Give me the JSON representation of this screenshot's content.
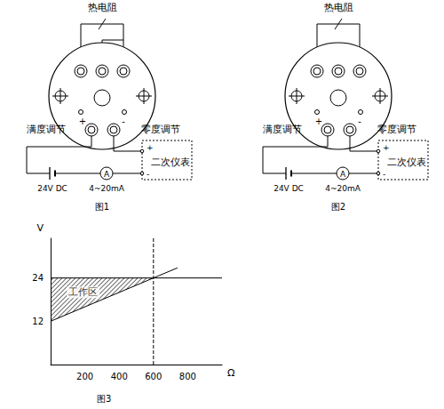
{
  "diagram1": {
    "caption": "图1",
    "sensor": "热电阻",
    "span_adjust": "满度调节",
    "zero_adjust": "零度调节",
    "terminal_plus": "+",
    "terminal_minus": "-",
    "supply": "24V DC",
    "meter": "A",
    "current": "4~20mA",
    "instrument": "二次仪表",
    "instrument_plus": "+",
    "instrument_minus": "-"
  },
  "diagram2": {
    "caption": "图2",
    "sensor": "热电阻",
    "span_adjust": "满度调节",
    "zero_adjust": "零度调节",
    "terminal_plus": "+",
    "terminal_minus": "-",
    "supply": "24V DC",
    "meter": "A",
    "current": "4~20mA",
    "instrument": "二次仪表",
    "instrument_plus": "+",
    "instrument_minus": "-"
  },
  "chart_data": {
    "type": "line",
    "title": "图3",
    "xlabel": "Ω",
    "ylabel": "V",
    "xlim": [
      0,
      1000
    ],
    "ylim": [
      0,
      35
    ],
    "xticks": [
      200,
      400,
      600,
      800
    ],
    "yticks": [
      12,
      24
    ],
    "grid": false,
    "series": [
      {
        "values": [
          [
            0,
            24
          ],
          [
            1000,
            24
          ]
        ],
        "color": "#000000",
        "line_style": "solid"
      },
      {
        "values": [
          [
            0,
            12
          ],
          [
            740,
            26.8
          ]
        ],
        "color": "#000000",
        "line_style": "solid"
      },
      {
        "values": [
          [
            600,
            0
          ],
          [
            600,
            35
          ]
        ],
        "color": "#000000",
        "line_style": "dashed"
      },
      {
        "type": "area",
        "values": [
          [
            0,
            12
          ],
          [
            600,
            24
          ],
          [
            0,
            24
          ]
        ],
        "color": "#000000",
        "marker": "hatch"
      }
    ],
    "annotations": [
      {
        "text": "工作区",
        "x": 190,
        "y": 20
      }
    ]
  }
}
